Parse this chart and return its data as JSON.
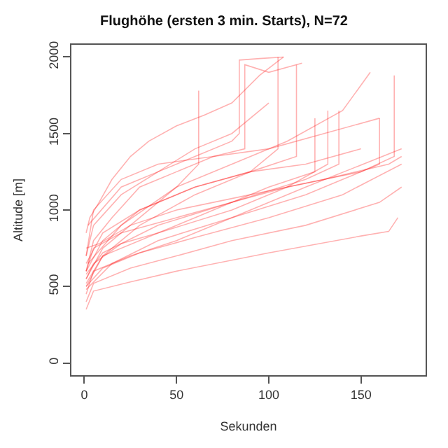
{
  "chart_data": {
    "type": "line",
    "title": "Flughöhe (ersten 3 min. Starts), N=72",
    "xlabel": "Sekunden",
    "ylabel": "Altitude [m]",
    "xlim": [
      -7,
      185
    ],
    "xticks": [
      0,
      50,
      100,
      150
    ],
    "ylim": [
      -80,
      2080
    ],
    "yticks": [
      0,
      500,
      1000,
      1500,
      2000
    ],
    "marker": "none",
    "line_style": "solid",
    "series": [
      {
        "color": "#ff0000",
        "x": [
          1,
          3,
          8,
          15,
          25,
          35,
          50,
          65,
          80,
          95,
          108
        ],
        "values": [
          850,
          950,
          1050,
          1200,
          1350,
          1450,
          1550,
          1620,
          1700,
          1880,
          2000
        ]
      },
      {
        "color": "#ff0000",
        "x": [
          1,
          5,
          20,
          40,
          60,
          80,
          84,
          84,
          95,
          108
        ],
        "values": [
          700,
          900,
          1100,
          1250,
          1350,
          1450,
          1500,
          1980,
          1990,
          2000
        ]
      },
      {
        "color": "#ff0000",
        "x": [
          1,
          5,
          15,
          30,
          50,
          70,
          87,
          87,
          100,
          118
        ],
        "values": [
          600,
          800,
          950,
          1150,
          1250,
          1350,
          1400,
          1950,
          1900,
          1960
        ]
      },
      {
        "color": "#ff0000",
        "x": [
          1,
          10,
          30,
          50,
          62,
          62
        ],
        "values": [
          550,
          750,
          950,
          1150,
          1300,
          1780
        ]
      },
      {
        "color": "#ff0000",
        "x": [
          1,
          10,
          30,
          60,
          90,
          105,
          105
        ],
        "values": [
          500,
          700,
          900,
          1100,
          1250,
          1400,
          2000
        ]
      },
      {
        "color": "#ff0000",
        "x": [
          1,
          10,
          30,
          60,
          90,
          115,
          115
        ],
        "values": [
          600,
          800,
          1000,
          1150,
          1250,
          1350,
          1950
        ]
      },
      {
        "color": "#ff0000",
        "x": [
          2,
          20,
          50,
          80,
          110,
          140,
          152,
          155
        ],
        "values": [
          650,
          900,
          1150,
          1300,
          1450,
          1650,
          1850,
          1900
        ]
      },
      {
        "color": "#ff0000",
        "x": [
          1,
          15,
          40,
          80,
          120,
          150,
          168,
          168
        ],
        "values": [
          480,
          650,
          800,
          950,
          1100,
          1250,
          1350,
          1880
        ]
      },
      {
        "color": "#ff0000",
        "x": [
          1,
          10,
          40,
          80,
          110,
          132,
          132
        ],
        "values": [
          520,
          700,
          850,
          1000,
          1150,
          1300,
          1650
        ]
      },
      {
        "color": "#ff0000",
        "x": [
          1,
          10,
          40,
          80,
          120,
          138,
          138
        ],
        "values": [
          580,
          720,
          900,
          1050,
          1200,
          1300,
          1650
        ]
      },
      {
        "color": "#ff0000",
        "x": [
          1,
          5,
          25,
          50,
          80,
          120,
          172
        ],
        "values": [
          450,
          600,
          700,
          800,
          950,
          1150,
          1400
        ]
      },
      {
        "color": "#ff0000",
        "x": [
          1,
          10,
          30,
          60,
          100,
          140,
          172
        ],
        "values": [
          500,
          620,
          720,
          820,
          950,
          1100,
          1300
        ]
      },
      {
        "color": "#ff0000",
        "x": [
          1,
          5,
          25,
          50,
          100,
          150,
          165,
          170
        ],
        "values": [
          350,
          470,
          530,
          600,
          720,
          830,
          860,
          950
        ]
      },
      {
        "color": "#ff0000",
        "x": [
          1,
          5,
          25,
          50,
          80,
          120,
          160,
          172
        ],
        "values": [
          400,
          520,
          620,
          700,
          800,
          900,
          1050,
          1150
        ]
      },
      {
        "color": "#ff0000",
        "x": [
          1,
          8,
          25,
          50,
          90,
          130,
          165,
          172
        ],
        "values": [
          750,
          780,
          900,
          1000,
          1100,
          1200,
          1300,
          1350
        ]
      },
      {
        "color": "#ff0000",
        "x": [
          1,
          5,
          20,
          40,
          70,
          100,
          130,
          160
        ],
        "values": [
          700,
          1000,
          1200,
          1300,
          1350,
          1400,
          1500,
          1600
        ]
      },
      {
        "color": "#ff0000",
        "x": [
          1,
          5,
          20,
          50,
          80,
          110,
          150,
          160,
          160
        ],
        "values": [
          600,
          750,
          850,
          950,
          1050,
          1150,
          1250,
          1300,
          1600
        ]
      },
      {
        "color": "#ff0000",
        "x": [
          1,
          10,
          30,
          60,
          90,
          120,
          150
        ],
        "values": [
          650,
          850,
          1000,
          1150,
          1250,
          1300,
          1400
        ]
      },
      {
        "color": "#ff0000",
        "x": [
          2,
          20,
          40,
          60,
          80,
          100
        ],
        "values": [
          900,
          1150,
          1250,
          1400,
          1500,
          1700
        ]
      },
      {
        "color": "#ff0000",
        "x": [
          1,
          5,
          20,
          40,
          60,
          80,
          100,
          125,
          125
        ],
        "values": [
          550,
          650,
          780,
          850,
          950,
          1050,
          1150,
          1250,
          1600
        ]
      }
    ]
  }
}
